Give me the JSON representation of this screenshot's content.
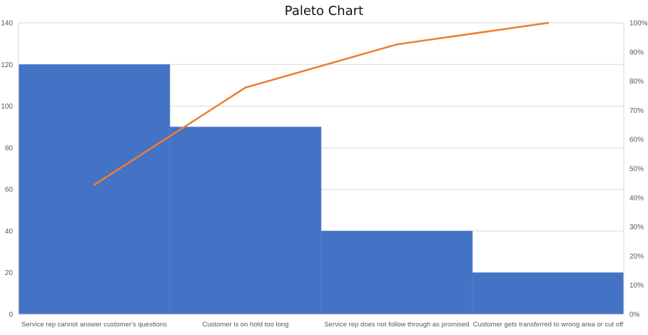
{
  "chart_data": {
    "type": "bar",
    "title": "Paleto Chart",
    "categories": [
      "Service rep cannot answer customer's questions",
      "Customer is on hold too long",
      "Service rep does not follow through as promised",
      "Customer gets transferred to wrong area or cut off"
    ],
    "series": [
      {
        "type": "bar",
        "values": [
          120,
          90,
          40,
          20
        ],
        "axis": "left",
        "color": "#4472c4"
      },
      {
        "type": "line",
        "values": [
          44.4,
          77.8,
          92.6,
          100
        ],
        "axis": "right",
        "unit": "%",
        "color": "#ed7d31"
      }
    ],
    "ylim": [
      0,
      140
    ],
    "y_ticks": [
      "0",
      "20",
      "40",
      "60",
      "80",
      "100",
      "120",
      "140"
    ],
    "y2lim": [
      0,
      100
    ],
    "y2_ticks": [
      "0%",
      "10%",
      "20%",
      "30%",
      "40%",
      "50%",
      "60%",
      "70%",
      "80%",
      "90%",
      "100%"
    ],
    "xlabel": "",
    "ylabel": "",
    "grid": true,
    "legend": "none"
  }
}
